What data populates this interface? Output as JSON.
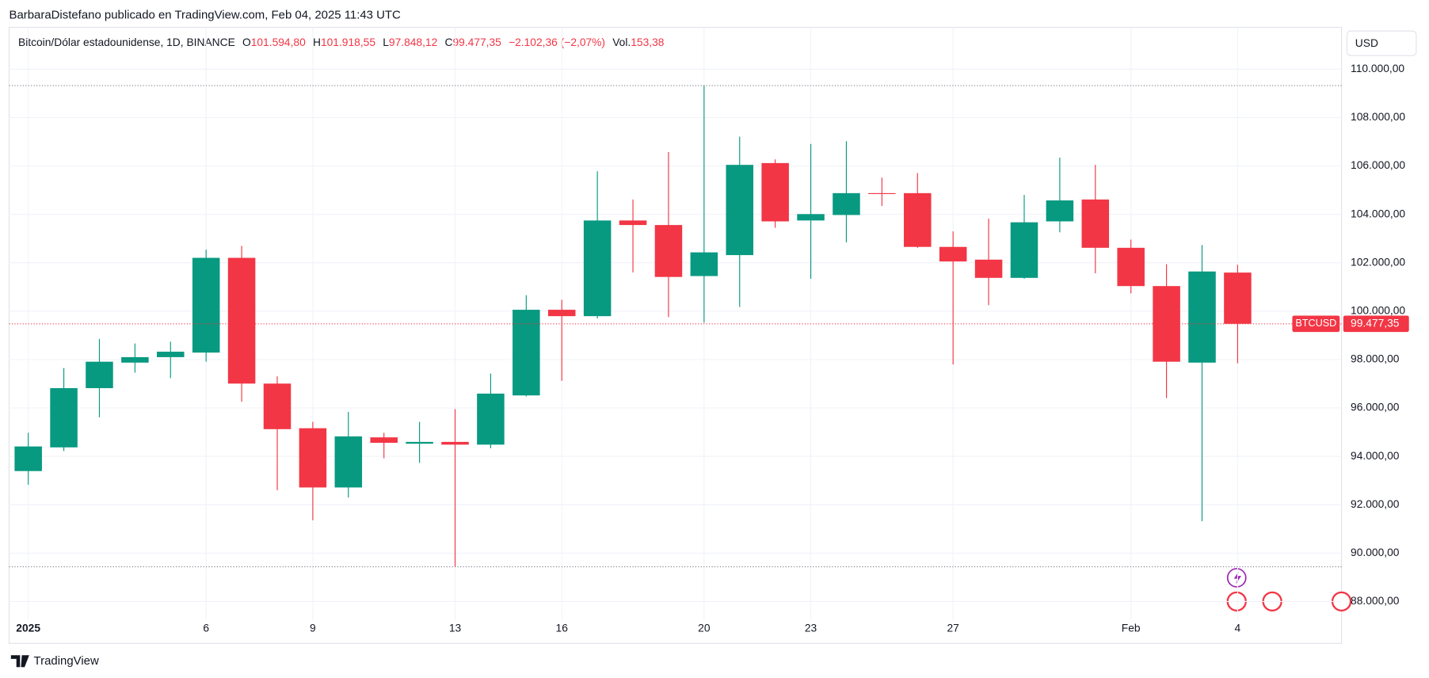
{
  "header": {
    "title": "BarbaraDistefano publicado en TradingView.com, Feb 04, 2025 11:43 UTC"
  },
  "legend": {
    "symbol": "Bitcoin/Dólar estadounidense, 1D, BINANCE",
    "o_label": "O",
    "o_value": "101.594,80",
    "h_label": "H",
    "h_value": "101.918,55",
    "l_label": "L",
    "l_value": "97.848,12",
    "c_label": "C",
    "c_value": "99.477,35",
    "change": "−2.102,36 (−2,07%)",
    "vol_label": "Vol.",
    "vol_value": "153,38"
  },
  "currency_button": "USD",
  "footer": {
    "brand": "TradingView"
  },
  "chart_data": {
    "type": "candlestick",
    "up_color": "#089981",
    "down_color": "#f23645",
    "grid": true,
    "categories": [
      "2025",
      null,
      null,
      null,
      null,
      "6",
      null,
      null,
      "9",
      null,
      null,
      null,
      "13",
      null,
      null,
      "16",
      null,
      null,
      null,
      "20",
      null,
      null,
      "23",
      null,
      null,
      null,
      "27",
      null,
      null,
      null,
      null,
      "Feb",
      null,
      null,
      "4"
    ],
    "open": [
      93392,
      94371,
      96819,
      97874,
      98100,
      98288,
      102204,
      97007,
      95162,
      92714,
      94785,
      94522,
      94597,
      94484,
      96518,
      100058,
      99794,
      103748,
      103560,
      101451,
      102317,
      106121,
      103748,
      103974,
      104878,
      104878,
      102656,
      102129,
      101376,
      103711,
      104615,
      102619,
      101037,
      97874,
      101594.8
    ],
    "high": [
      94974,
      97648,
      98853,
      98664,
      98740,
      102543,
      102694,
      97309,
      95426,
      95840,
      94974,
      95426,
      95953,
      97422,
      100660,
      100472,
      105782,
      104615,
      106573,
      109322,
      107213,
      106272,
      106912,
      107025,
      105518,
      105707,
      103296,
      103824,
      104803,
      106347,
      106046,
      102958,
      101941,
      102732,
      101918.55
    ],
    "low": [
      92827,
      94221,
      95614,
      97459,
      97233,
      97911,
      96254,
      92601,
      91358,
      92300,
      93919,
      93731,
      89437,
      94334,
      96480,
      97120,
      99700,
      101602,
      99756,
      99530,
      100171,
      103447,
      101338,
      102845,
      104351,
      102620,
      97798,
      100246,
      101340,
      103259,
      101564,
      100736,
      96405,
      91320,
      97848.12
    ],
    "close": [
      94409,
      96819,
      97911,
      98100,
      98325,
      102204,
      97007,
      95124,
      92714,
      94823,
      94559,
      94597,
      94484,
      96593,
      100058,
      99794,
      103748,
      103560,
      101414,
      102430,
      106046,
      103711,
      104012,
      104878,
      104841,
      102656,
      102054,
      101376,
      103673,
      104577,
      102619,
      101037,
      97911,
      101640,
      99477.35
    ],
    "last_price": {
      "symbol": "BTCUSD",
      "label": "99.477,35"
    },
    "ylim": [
      87250,
      111730
    ],
    "yticks": [
      {
        "value": 88000,
        "label": "88.000,00"
      },
      {
        "value": 90000,
        "label": "90.000,00"
      },
      {
        "value": 92000,
        "label": "92.000,00"
      },
      {
        "value": 94000,
        "label": "94.000,00"
      },
      {
        "value": 96000,
        "label": "96.000,00"
      },
      {
        "value": 98000,
        "label": "98.000,00"
      },
      {
        "value": 100000,
        "label": "100.000,00"
      },
      {
        "value": 102000,
        "label": "102.000,00"
      },
      {
        "value": 104000,
        "label": "104.000,00"
      },
      {
        "value": 106000,
        "label": "106.000,00"
      },
      {
        "value": 108000,
        "label": "108.000,00"
      },
      {
        "value": 110000,
        "label": "110.000,00"
      }
    ]
  }
}
